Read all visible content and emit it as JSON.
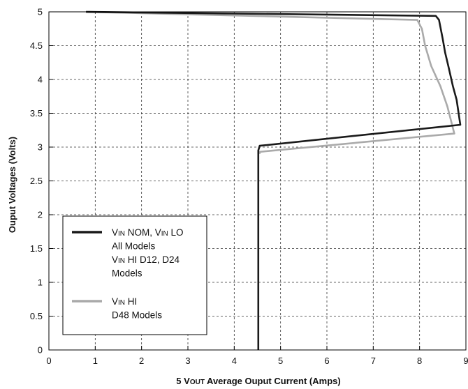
{
  "chart_data": {
    "type": "line",
    "title": "",
    "xlabel": {
      "main": "5 V",
      "sub": "OUT",
      "rest": " Average Ouput Current (Amps)"
    },
    "ylabel": "Ouput Voltages (Volts)",
    "xlim": [
      0,
      9
    ],
    "ylim": [
      0,
      5
    ],
    "x_ticks": [
      0,
      1,
      2,
      3,
      4,
      5,
      6,
      7,
      8,
      9
    ],
    "y_ticks": [
      0,
      0.5,
      1,
      1.5,
      2,
      2.5,
      3,
      3.5,
      4,
      4.5,
      5
    ],
    "x_tick_labels": [
      "0",
      "1",
      "2",
      "3",
      "4",
      "5",
      "6",
      "7",
      "8",
      "9"
    ],
    "y_tick_labels": [
      "0",
      "0.5",
      "1",
      "1.5",
      "2",
      "2.5",
      "3",
      "3.5",
      "4",
      "4.5",
      "5"
    ],
    "grid": true,
    "legend_position": "lower-left",
    "series": [
      {
        "color": "#1a1a1a",
        "legend_lines": [
          {
            "v": "V",
            "sub": "IN",
            "rest": " NOM, V",
            "sub2": "IN",
            "rest2": " LO"
          },
          {
            "plain": "All Models"
          },
          {
            "v": "V",
            "sub": "IN",
            "rest": " HI  D12, D24"
          },
          {
            "plain": "Models"
          }
        ],
        "x": [
          0.8,
          8.35,
          8.42,
          8.5,
          8.55,
          8.62,
          8.72,
          8.8,
          8.88,
          4.55,
          4.52,
          4.52
        ],
        "y": [
          5.0,
          4.94,
          4.88,
          4.6,
          4.4,
          4.2,
          3.9,
          3.7,
          3.33,
          3.02,
          2.95,
          0.0
        ]
      },
      {
        "color": "#aaaaaa",
        "legend_lines": [
          {
            "v": "V",
            "sub": "IN",
            "rest": " HI"
          },
          {
            "plain": "D48 Models"
          }
        ],
        "x": [
          0.8,
          7.95,
          8.05,
          8.12,
          8.25,
          8.45,
          8.6,
          8.75,
          4.55,
          4.55
        ],
        "y": [
          5.0,
          4.88,
          4.75,
          4.5,
          4.2,
          3.9,
          3.6,
          3.2,
          2.93,
          2.9
        ]
      }
    ]
  }
}
